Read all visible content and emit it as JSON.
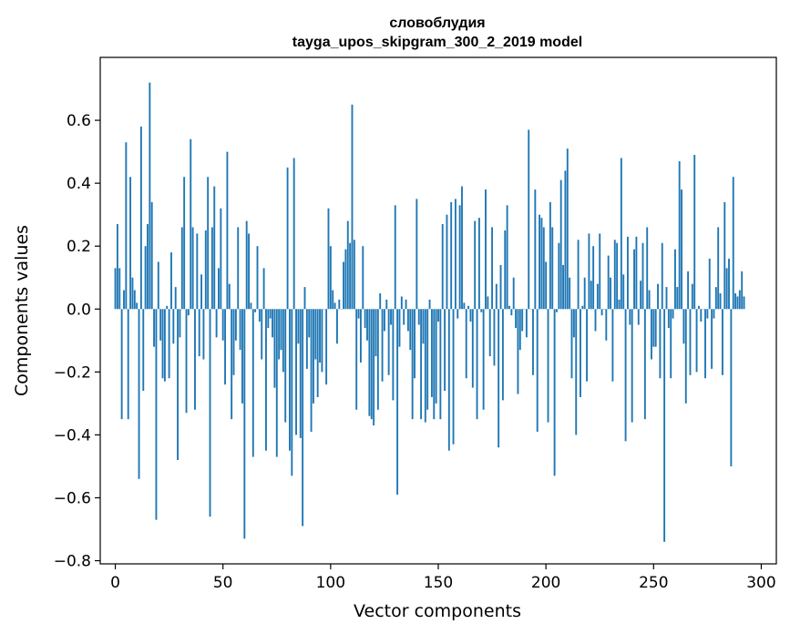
{
  "chart_data": {
    "type": "bar",
    "title": "словоблудия",
    "subtitle": "tayga_upos_skipgram_300_2_2019 model",
    "xlabel": "Vector components",
    "ylabel": "Components values",
    "xlim": [
      -7,
      307
    ],
    "ylim": [
      -0.81,
      0.8
    ],
    "xticks": [
      0,
      50,
      100,
      150,
      200,
      250,
      300
    ],
    "yticks": [
      -0.8,
      -0.6,
      -0.4,
      -0.2,
      0.0,
      0.2,
      0.4,
      0.6
    ],
    "ytick_labels": [
      "−0.8",
      "−0.6",
      "−0.4",
      "−0.2",
      "0.0",
      "0.2",
      "0.4",
      "0.6"
    ],
    "bar_color": "#1f77b4",
    "grid": false,
    "values": [
      0.13,
      0.27,
      0.13,
      -0.35,
      0.06,
      0.53,
      -0.35,
      0.42,
      0.1,
      0.06,
      0.02,
      -0.54,
      0.58,
      -0.26,
      0.2,
      0.27,
      0.72,
      0.34,
      -0.12,
      -0.67,
      0.15,
      -0.1,
      -0.22,
      -0.23,
      0.01,
      -0.22,
      0.18,
      -0.11,
      0.07,
      -0.48,
      -0.09,
      0.26,
      0.42,
      -0.33,
      -0.02,
      0.54,
      0.26,
      -0.32,
      0.24,
      -0.15,
      0.11,
      -0.16,
      0.25,
      0.42,
      -0.66,
      0.26,
      0.39,
      -0.09,
      0.13,
      0.32,
      -0.1,
      -0.24,
      0.5,
      0.08,
      -0.35,
      -0.21,
      -0.1,
      0.26,
      -0.13,
      -0.3,
      -0.73,
      0.28,
      0.24,
      0.02,
      -0.47,
      -0.01,
      0.2,
      -0.04,
      -0.16,
      0.13,
      -0.45,
      -0.06,
      -0.03,
      -0.09,
      -0.25,
      -0.47,
      -0.16,
      -0.13,
      -0.2,
      -0.36,
      0.45,
      -0.45,
      -0.53,
      0.48,
      -0.4,
      -0.11,
      -0.41,
      -0.69,
      0.07,
      -0.19,
      -0.09,
      -0.39,
      -0.3,
      -0.16,
      -0.28,
      -0.17,
      -0.2,
      0.0,
      -0.24,
      0.32,
      0.2,
      0.06,
      0.02,
      -0.11,
      0.03,
      0.0,
      0.15,
      0.19,
      0.28,
      0.21,
      0.65,
      0.22,
      -0.32,
      -0.03,
      -0.17,
      0.2,
      -0.06,
      -0.1,
      -0.34,
      -0.35,
      -0.37,
      -0.15,
      -0.32,
      0.05,
      -0.23,
      -0.07,
      0.03,
      -0.21,
      -0.05,
      -0.29,
      0.33,
      -0.59,
      -0.12,
      0.04,
      -0.05,
      0.03,
      -0.07,
      -0.13,
      -0.35,
      -0.22,
      0.35,
      -0.05,
      -0.35,
      -0.11,
      -0.36,
      -0.32,
      0.03,
      -0.28,
      -0.35,
      -0.3,
      -0.04,
      -0.35,
      0.27,
      -0.26,
      0.3,
      -0.45,
      0.34,
      -0.43,
      0.35,
      -0.03,
      0.33,
      0.39,
      0.02,
      -0.22,
      0.01,
      -0.04,
      -0.25,
      0.28,
      -0.35,
      0.29,
      -0.01,
      -0.32,
      0.38,
      0.04,
      -0.15,
      0.26,
      -0.18,
      0.08,
      -0.44,
      0.14,
      -0.29,
      0.25,
      0.33,
      0.01,
      -0.02,
      0.1,
      -0.06,
      -0.27,
      -0.13,
      -0.07,
      0.0,
      -0.09,
      0.57,
      0.0,
      -0.21,
      0.38,
      -0.39,
      0.3,
      0.29,
      0.26,
      0.15,
      -0.36,
      0.34,
      0.26,
      -0.53,
      -0.01,
      0.21,
      0.41,
      0.14,
      0.44,
      0.51,
      0.1,
      -0.22,
      -0.09,
      -0.4,
      0.22,
      -0.28,
      0.01,
      0.1,
      -0.23,
      0.24,
      0.09,
      0.2,
      -0.07,
      0.08,
      0.24,
      -0.02,
      0.0,
      -0.1,
      0.17,
      0.1,
      -0.23,
      0.22,
      0.21,
      0.03,
      0.48,
      0.11,
      -0.42,
      0.23,
      -0.05,
      -0.36,
      0.19,
      0.23,
      -0.05,
      0.09,
      0.21,
      -0.35,
      0.26,
      0.06,
      -0.16,
      -0.12,
      -0.12,
      0.08,
      -0.22,
      0.21,
      -0.74,
      0.07,
      -0.06,
      -0.22,
      -0.03,
      0.19,
      0.07,
      0.47,
      0.38,
      -0.11,
      -0.3,
      0.12,
      -0.21,
      0.08,
      0.49,
      -0.2,
      0.01,
      -0.04,
      0.0,
      -0.22,
      -0.03,
      0.16,
      -0.19,
      -0.03,
      0.07,
      0.26,
      0.05,
      -0.21,
      0.34,
      0.13,
      0.16,
      -0.5,
      0.42,
      0.05,
      0.04,
      0.06,
      0.12,
      0.04
    ]
  }
}
